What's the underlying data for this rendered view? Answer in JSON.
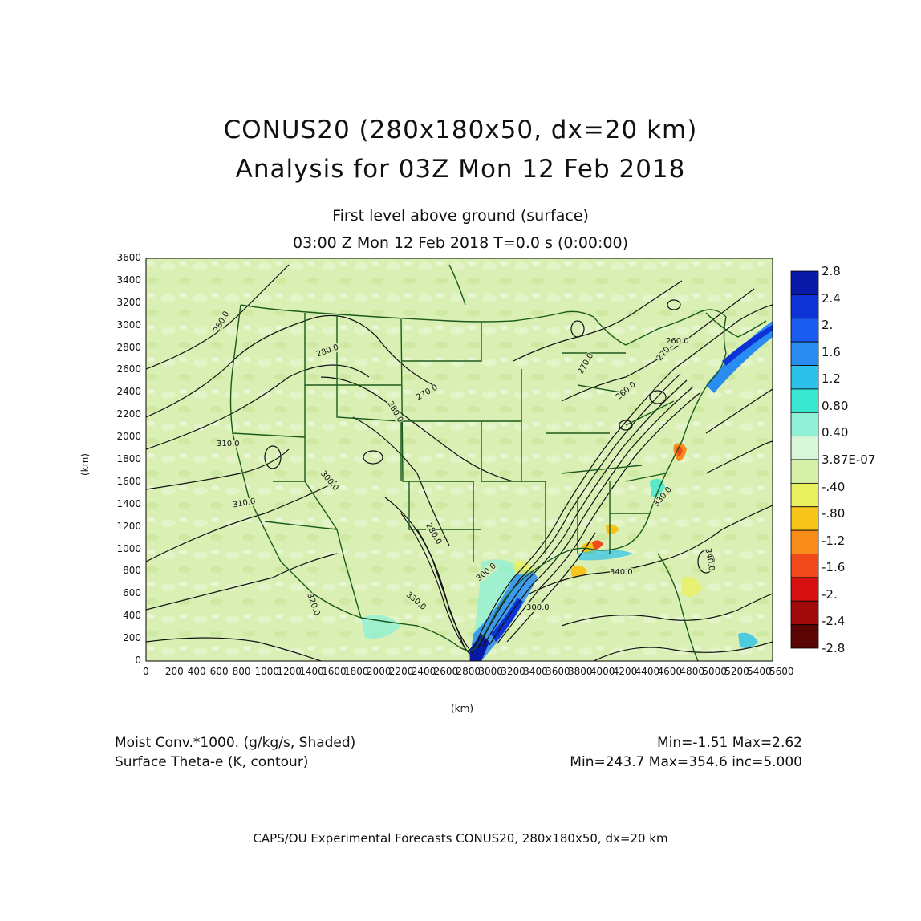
{
  "title": {
    "line1": "CONUS20 (280x180x50, dx=20 km)",
    "line2": "Analysis for 03Z Mon 12 Feb 2018"
  },
  "subtitle": {
    "line1": "First level above ground (surface)",
    "line2": "03:00 Z Mon 12 Feb 2018    T=0.0 s (0:00:00)"
  },
  "axes": {
    "x_unit": "(km)",
    "y_unit": "(km)",
    "x_ticks": [
      "0",
      "200",
      "400",
      "600",
      "800",
      "1000",
      "1200",
      "1400",
      "1600",
      "1800",
      "2000",
      "2200",
      "2400",
      "2600",
      "2800",
      "3000",
      "3200",
      "3400",
      "3600",
      "3800",
      "4000",
      "4200",
      "4400",
      "4600",
      "4800",
      "5000",
      "5200",
      "5400",
      "5600"
    ],
    "y_ticks": [
      "0",
      "200",
      "400",
      "600",
      "800",
      "1000",
      "1200",
      "1400",
      "1600",
      "1800",
      "2000",
      "2200",
      "2400",
      "2600",
      "2800",
      "3000",
      "3200",
      "3400",
      "3600"
    ],
    "x_range": [
      0,
      5600
    ],
    "y_range": [
      0,
      3600
    ]
  },
  "colorbar": {
    "labels": [
      "2.8",
      "2.4",
      "2.",
      "1.6",
      "1.2",
      "0.80",
      "0.40",
      "3.87E-07",
      "-.40",
      "-.80",
      "-1.2",
      "-1.6",
      "-2.",
      "-2.4",
      "-2.8"
    ],
    "colors": [
      "#0a1aa8",
      "#0d33d6",
      "#1a5cf0",
      "#2a8cf0",
      "#2bc1e8",
      "#39e6cf",
      "#8ff0d6",
      "#d7f7d8",
      "#d6f0a8",
      "#e8f060",
      "#f7c41a",
      "#f78c1a",
      "#f04a1a",
      "#d61010",
      "#a00a0a",
      "#5c0505"
    ]
  },
  "contour_labels": [
    "280.0",
    "280.0",
    "270.0",
    "280.0",
    "270.0",
    "270.0",
    "260.0",
    "260.0",
    "300.0",
    "300.0",
    "310.0",
    "320.0",
    "280.0",
    "330.0",
    "340.0",
    "340.0",
    "300.0",
    "330.0",
    "310.0"
  ],
  "footer": {
    "left1": "Moist Conv.*1000. (g/kg/s, Shaded)",
    "left2": "Surface Theta-e (K, contour)",
    "right1": "Min=-1.51 Max=2.62",
    "right2": "Min=243.7 Max=354.6 inc=5.000"
  },
  "credit": "CAPS/OU Experimental Forecasts  CONUS20, 280x180x50, dx=20 km"
}
